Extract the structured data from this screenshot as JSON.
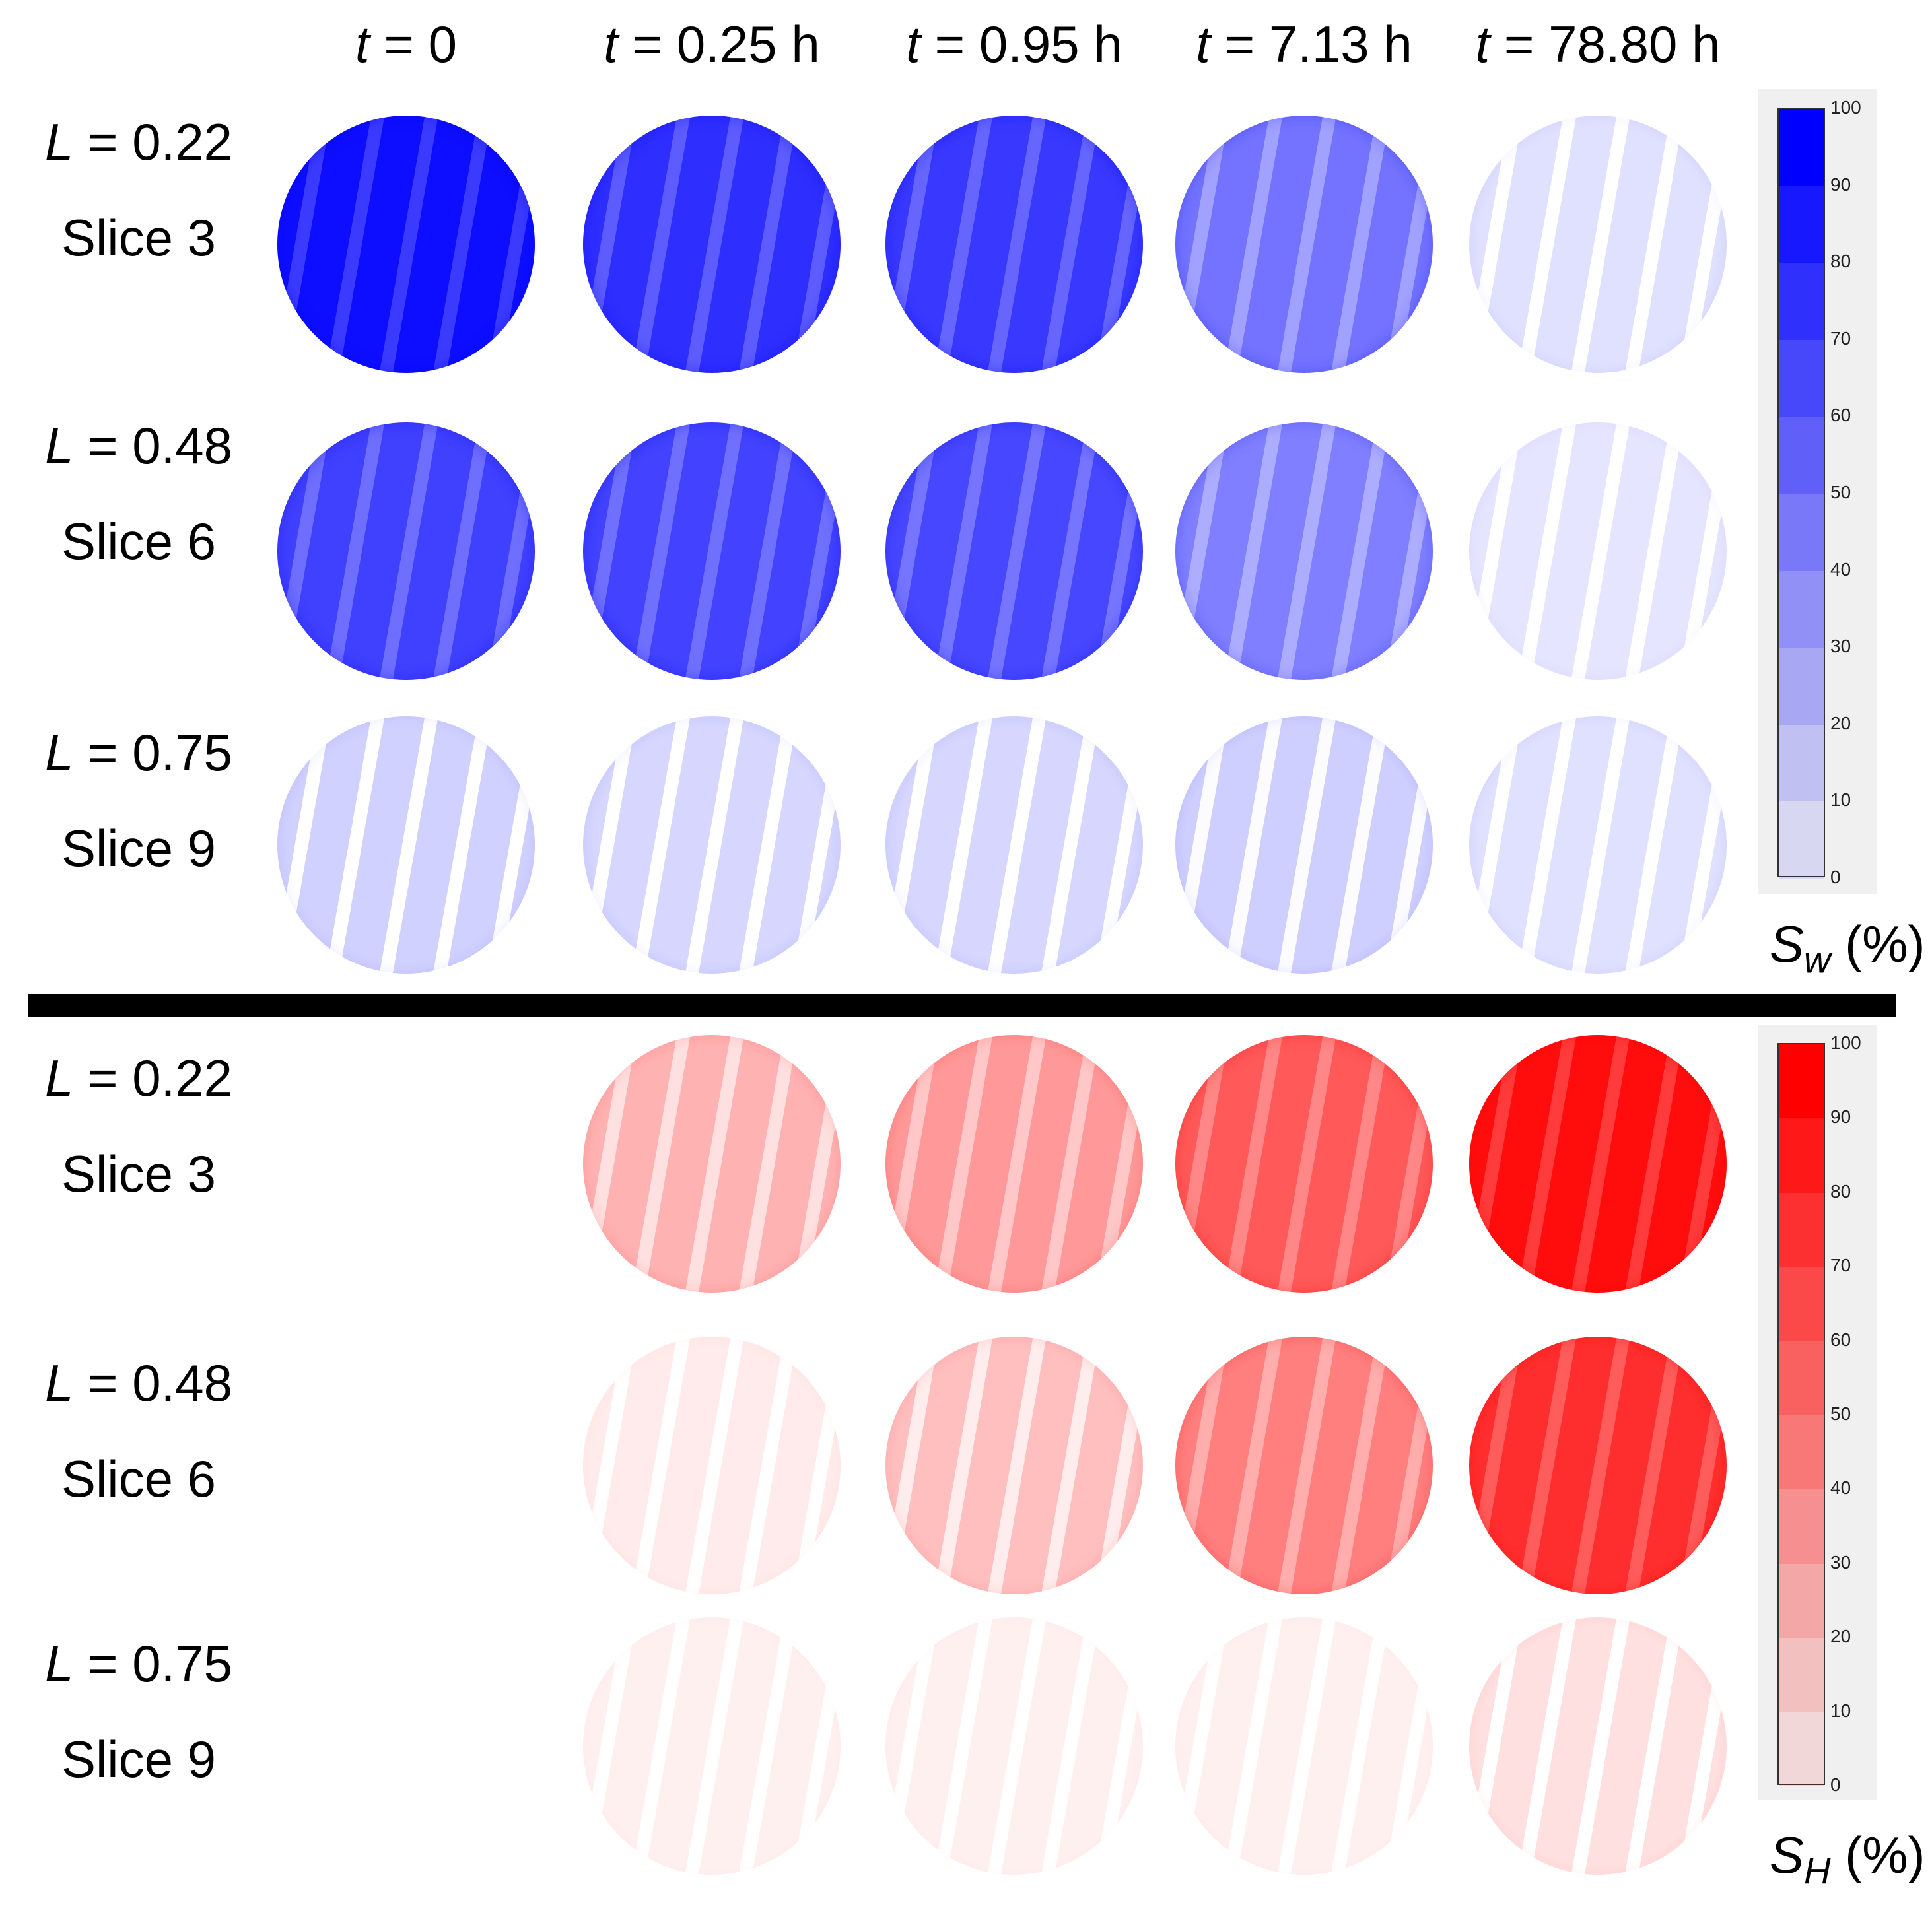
{
  "time_headers": [
    "t = 0",
    "t = 0.25 h",
    "t = 0.95 h",
    "t = 7.13 h",
    "t = 78.80 h"
  ],
  "water_panel": {
    "rows": [
      {
        "position": "L = 0.22",
        "slice": "Slice 3"
      },
      {
        "position": "L = 0.48",
        "slice": "Slice 6"
      },
      {
        "position": "L = 0.75",
        "slice": "Slice 9"
      }
    ],
    "colorbar": {
      "label_symbol": "S",
      "label_subscript": "w",
      "label_unit": "(%)",
      "ticks": [
        "100",
        "90",
        "80",
        "70",
        "60",
        "50",
        "40",
        "30",
        "20",
        "10",
        "0"
      ],
      "color": "#0000ff"
    },
    "saturation_levels": [
      [
        0.95,
        0.82,
        0.78,
        0.55,
        0.12
      ],
      [
        0.75,
        0.74,
        0.72,
        0.5,
        0.1
      ],
      [
        0.18,
        0.16,
        0.16,
        0.19,
        0.12
      ]
    ]
  },
  "hydrate_panel": {
    "rows": [
      {
        "position": "L = 0.22",
        "slice": "Slice 3"
      },
      {
        "position": "L = 0.48",
        "slice": "Slice 6"
      },
      {
        "position": "L = 0.75",
        "slice": "Slice 9"
      }
    ],
    "colorbar": {
      "label_symbol": "S",
      "label_subscript": "H",
      "label_unit": "(%)",
      "ticks": [
        "100",
        "90",
        "80",
        "70",
        "60",
        "50",
        "40",
        "30",
        "20",
        "10",
        "0"
      ],
      "color": "#ff0000"
    },
    "saturation_levels": [
      [
        null,
        0.3,
        0.4,
        0.65,
        0.95
      ],
      [
        null,
        0.08,
        0.25,
        0.5,
        0.82
      ],
      [
        null,
        0.06,
        0.06,
        0.06,
        0.12
      ]
    ]
  }
}
